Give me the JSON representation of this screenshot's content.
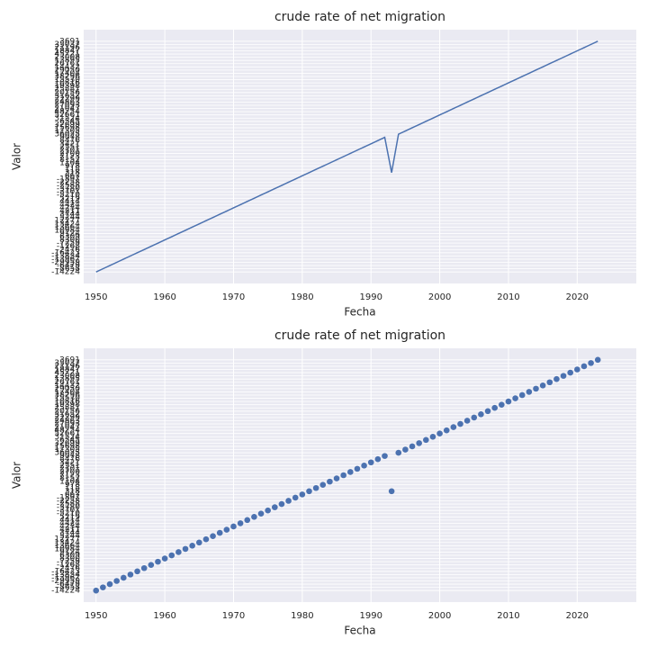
{
  "chart_data": [
    {
      "type": "line",
      "title": "crude rate of net migration",
      "x_label": "Fecha",
      "y_label": "Valor",
      "color": "#4c72b0",
      "grid": true,
      "x": [
        1950,
        1951,
        1952,
        1953,
        1954,
        1955,
        1956,
        1957,
        1958,
        1959,
        1960,
        1961,
        1962,
        1963,
        1964,
        1965,
        1966,
        1967,
        1968,
        1969,
        1970,
        1971,
        1972,
        1973,
        1974,
        1975,
        1976,
        1977,
        1978,
        1979,
        1980,
        1981,
        1982,
        1983,
        1984,
        1985,
        1986,
        1987,
        1988,
        1989,
        1990,
        1991,
        1992,
        1993,
        1994,
        1995,
        1996,
        1997,
        1998,
        1999,
        2000,
        2001,
        2002,
        2003,
        2004,
        2005,
        2006,
        2007,
        2008,
        2009,
        2010,
        2011,
        2012,
        2013,
        2014,
        2015,
        2016,
        2017,
        2018,
        2019,
        2020,
        2021,
        2022,
        2023
      ],
      "values": [
        -14224,
        -8658,
        -6479,
        -29959,
        -13967,
        -13834,
        -16423,
        -2476,
        -1268,
        -7259,
        8300,
        6309,
        9124,
        10984,
        13664,
        13424,
        12277,
        5244,
        3744,
        4211,
        4234,
        4424,
        4414,
        5219,
        -5210,
        -3701,
        -3780,
        -2588,
        -2258,
        -1897,
        667,
        318,
        118,
        978,
        1104,
        8152,
        7123,
        2700,
        2101,
        2551,
        3421,
        8476,
        9078,
        318,
        36025,
        11305,
        15698,
        32699,
        6545,
        31524,
        52661,
        48254,
        21047,
        27093,
        24863,
        22299,
        31652,
        20156,
        25881,
        19398,
        10816,
        15530,
        38296,
        17404,
        29050,
        14432,
        26761,
        13895,
        23008,
        45721,
        18847,
        21196,
        35037,
        3691
      ],
      "xlim": [
        1948.2,
        2028.6
      ],
      "xticks": [
        1950,
        1960,
        1970,
        1980,
        1990,
        2000,
        2010,
        2020
      ]
    },
    {
      "type": "scatter",
      "title": "crude rate of net migration",
      "x_label": "Fecha",
      "y_label": "Valor",
      "color": "#4c72b0",
      "grid": true,
      "x": [
        1950,
        1951,
        1952,
        1953,
        1954,
        1955,
        1956,
        1957,
        1958,
        1959,
        1960,
        1961,
        1962,
        1963,
        1964,
        1965,
        1966,
        1967,
        1968,
        1969,
        1970,
        1971,
        1972,
        1973,
        1974,
        1975,
        1976,
        1977,
        1978,
        1979,
        1980,
        1981,
        1982,
        1983,
        1984,
        1985,
        1986,
        1987,
        1988,
        1989,
        1990,
        1991,
        1992,
        1993,
        1994,
        1995,
        1996,
        1997,
        1998,
        1999,
        2000,
        2001,
        2002,
        2003,
        2004,
        2005,
        2006,
        2007,
        2008,
        2009,
        2010,
        2011,
        2012,
        2013,
        2014,
        2015,
        2016,
        2017,
        2018,
        2019,
        2020,
        2021,
        2022,
        2023
      ],
      "values": [
        -14224,
        -8658,
        -6479,
        -29959,
        -13967,
        -13834,
        -16423,
        -2476,
        -1268,
        -7259,
        8300,
        6309,
        9124,
        10984,
        13664,
        13424,
        12277,
        5244,
        3744,
        4211,
        4234,
        4424,
        4414,
        5219,
        -5210,
        -3701,
        -3780,
        -2588,
        -2258,
        -1897,
        667,
        318,
        118,
        978,
        1104,
        8152,
        7123,
        2700,
        2101,
        2551,
        3421,
        8476,
        9078,
        318,
        36025,
        11305,
        15698,
        32699,
        6545,
        31524,
        52661,
        48254,
        21047,
        27093,
        24863,
        22299,
        31652,
        20156,
        25881,
        19398,
        10816,
        15530,
        38296,
        17404,
        29050,
        14432,
        26761,
        13895,
        23008,
        45721,
        18847,
        21196,
        35037,
        3691
      ],
      "xlim": [
        1948.2,
        2028.6
      ],
      "xticks": [
        1950,
        1960,
        1970,
        1980,
        1990,
        2000,
        2010,
        2020
      ]
    }
  ]
}
